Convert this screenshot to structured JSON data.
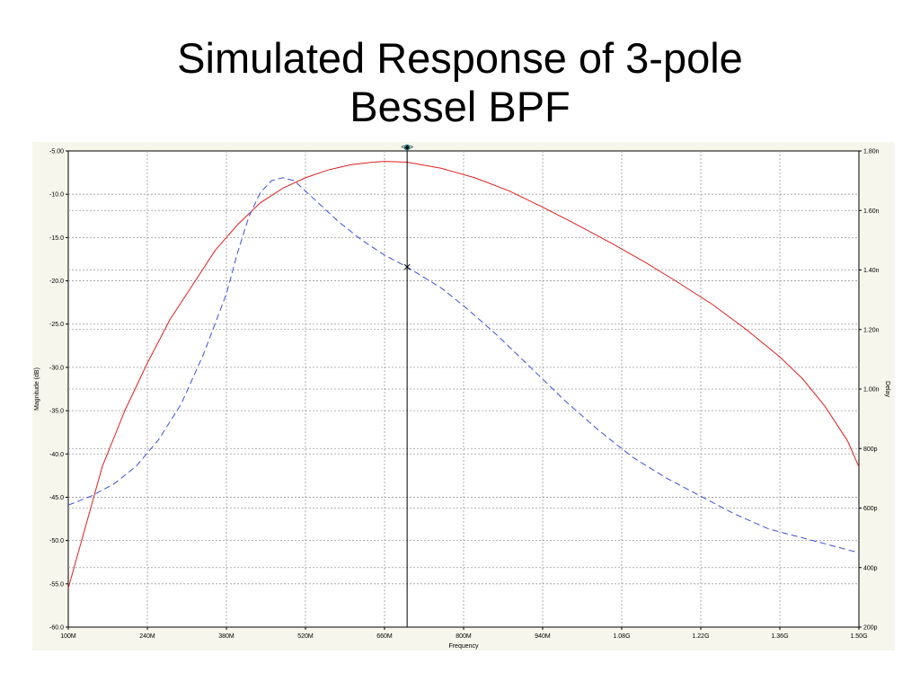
{
  "slide": {
    "title_line1": "Simulated Response of 3-pole",
    "title_line2": "Bessel BPF"
  },
  "chart_data": {
    "type": "line",
    "xlabel": "Frequency",
    "ylabel": "Magnitude  (dB)",
    "y2label": "Delay",
    "xlim": [
      100,
      1500
    ],
    "ylim": [
      -60,
      -5
    ],
    "y2lim": [
      200,
      1800
    ],
    "x_ticks": [
      100,
      240,
      380,
      520,
      660,
      800,
      940,
      1080,
      1220,
      1360,
      1500
    ],
    "x_tick_labels": [
      "100M",
      "240M",
      "380M",
      "520M",
      "660M",
      "800M",
      "940M",
      "1.08G",
      "1.22G",
      "1.36G",
      "1.50G"
    ],
    "y_ticks": [
      -5,
      -10,
      -15,
      -20,
      -25,
      -30,
      -35,
      -40,
      -45,
      -50,
      -55,
      -60
    ],
    "y_tick_labels": [
      "-5.00",
      "-10.0",
      "-15.0",
      "-20.0",
      "-25.0",
      "-30.0",
      "-35.0",
      "-40.0",
      "-45.0",
      "-50.0",
      "-55.0",
      "-60.0"
    ],
    "y2_ticks": [
      1800,
      1600,
      1400,
      1200,
      1000,
      800,
      600,
      400,
      200
    ],
    "y2_tick_labels": [
      "1.80n",
      "1.60n",
      "1.40n",
      "1.20n",
      "1.00n",
      "800p",
      "600p",
      "400p",
      "200p"
    ],
    "grid": true,
    "marker_x": 700,
    "marker_label": "<◆>",
    "series": [
      {
        "axis": "left",
        "color": "#e02020",
        "dash": "solid",
        "x": [
          100,
          130,
          160,
          200,
          240,
          280,
          320,
          360,
          400,
          440,
          480,
          520,
          560,
          600,
          640,
          660,
          700,
          760,
          820,
          880,
          940,
          1000,
          1060,
          1120,
          1180,
          1240,
          1300,
          1360,
          1400,
          1440,
          1480,
          1500
        ],
        "values": [
          -55.5,
          -48.5,
          -41.5,
          -35,
          -29.5,
          -24.5,
          -20.5,
          -16.5,
          -13.5,
          -11,
          -9.3,
          -8.1,
          -7.2,
          -6.6,
          -6.3,
          -6.2,
          -6.3,
          -7,
          -8.1,
          -9.6,
          -11.5,
          -13.5,
          -15.6,
          -17.8,
          -20.2,
          -22.7,
          -25.6,
          -28.8,
          -31.3,
          -34.5,
          -38.5,
          -41.5
        ]
      },
      {
        "axis": "right",
        "color": "#3b4fe0",
        "dash": "dashed",
        "x": [
          100,
          140,
          180,
          220,
          260,
          300,
          340,
          380,
          400,
          420,
          440,
          460,
          480,
          500,
          540,
          580,
          620,
          660,
          700,
          760,
          800,
          860,
          920,
          980,
          1040,
          1100,
          1160,
          1220,
          1280,
          1340,
          1400,
          1460,
          1500
        ],
        "values": [
          610,
          640,
          680,
          740,
          830,
          950,
          1120,
          1320,
          1460,
          1580,
          1660,
          1700,
          1710,
          1700,
          1630,
          1560,
          1500,
          1450,
          1410,
          1340,
          1280,
          1180,
          1070,
          960,
          860,
          770,
          700,
          640,
          580,
          530,
          500,
          470,
          450
        ]
      }
    ]
  }
}
